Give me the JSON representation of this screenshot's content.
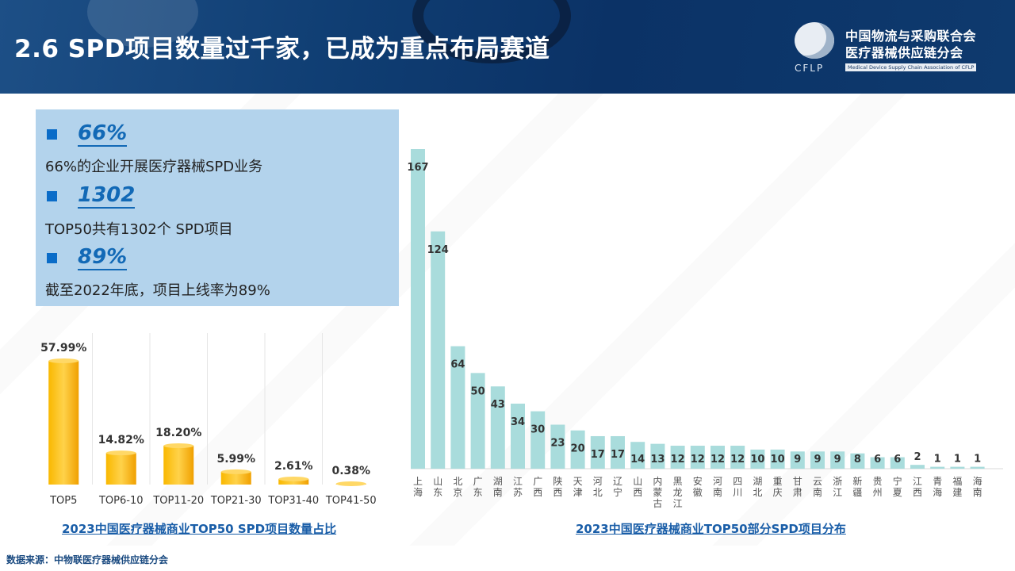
{
  "header": {
    "title": "2.6 SPD项目数量过千家，已成为重点布局赛道"
  },
  "logo": {
    "cn_line1": "中国物流与采购联合会",
    "cn_line2": "医疗器械供应链分会",
    "abbr": "CFLP",
    "en": "Medical Device Supply Chain Association of CFLP"
  },
  "stats": [
    {
      "value": "66%",
      "desc": "66%的企业开展医疗器械SPD业务"
    },
    {
      "value": "1302",
      "desc": "TOP50共有1302个 SPD项目"
    },
    {
      "value": "89%",
      "desc": "截至2022年底，项目上线率为89%"
    }
  ],
  "colors": {
    "header_bg": "#0f3d72",
    "stat_box": "#b3d3ec",
    "accent": "#1269b6",
    "left_bar": "#f5a800",
    "right_bar": "#a9dcdc"
  },
  "chart_data": [
    {
      "type": "bar",
      "title": "2023中国医疗器械商业TOP50 SPD项目数量占比",
      "categories": [
        "TOP5",
        "TOP6-10",
        "TOP11-20",
        "TOP21-30",
        "TOP31-40",
        "TOP41-50"
      ],
      "values": [
        57.99,
        14.82,
        18.2,
        5.99,
        2.61,
        0.38
      ],
      "labels": [
        "57.99%",
        "14.82%",
        "18.20%",
        "5.99%",
        "2.61%",
        "0.38%"
      ],
      "unit": "%",
      "grid": "vertical-dividers"
    },
    {
      "type": "bar",
      "title": "2023中国医疗器械商业TOP50部分SPD项目分布",
      "categories": [
        "上海",
        "山东",
        "北京",
        "广东",
        "湖南",
        "江苏",
        "广西",
        "陕西",
        "天津",
        "河北",
        "辽宁",
        "山西",
        "内蒙古",
        "黑龙江",
        "安徽",
        "河南",
        "四川",
        "湖北",
        "重庆",
        "甘肃",
        "云南",
        "浙江",
        "新疆",
        "贵州",
        "宁夏",
        "江西",
        "青海",
        "福建",
        "海南"
      ],
      "values": [
        167,
        124,
        64,
        50,
        43,
        34,
        30,
        23,
        20,
        17,
        17,
        14,
        13,
        12,
        12,
        12,
        12,
        10,
        10,
        9,
        9,
        9,
        8,
        6,
        6,
        2,
        1,
        1,
        1
      ],
      "grid": false
    }
  ],
  "source": "数据来源：中物联医疗器械供应链分会",
  "watermark": "中物联医疗器械供应链分会"
}
